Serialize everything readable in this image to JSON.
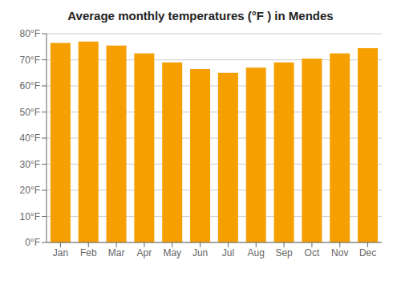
{
  "chart_data": {
    "type": "bar",
    "title": "Average monthly temperatures (°F ) in Mendes",
    "categories": [
      "Jan",
      "Feb",
      "Mar",
      "Apr",
      "May",
      "Jun",
      "Jul",
      "Aug",
      "Sep",
      "Oct",
      "Nov",
      "Dec"
    ],
    "values": [
      76.5,
      77.0,
      75.5,
      72.5,
      69.0,
      66.5,
      65.0,
      67.0,
      69.0,
      70.5,
      72.5,
      74.5
    ],
    "color": "#F5A000",
    "ylim": [
      0,
      80
    ],
    "yticks": [
      {
        "value": 0,
        "label": "0°F"
      },
      {
        "value": 10,
        "label": "10°F"
      },
      {
        "value": 20,
        "label": "20°F"
      },
      {
        "value": 30,
        "label": "30°F"
      },
      {
        "value": 40,
        "label": "40°F"
      },
      {
        "value": 50,
        "label": "50°F"
      },
      {
        "value": 60,
        "label": "60°F"
      },
      {
        "value": 70,
        "label": "70°F"
      },
      {
        "value": 80,
        "label": "80°F"
      }
    ],
    "grid": true
  }
}
